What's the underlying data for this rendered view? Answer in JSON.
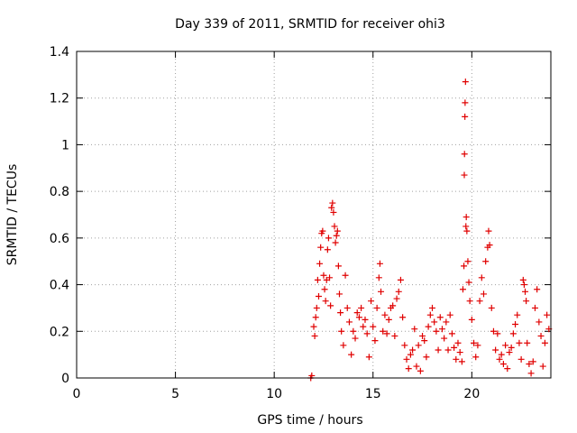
{
  "chart_data": {
    "type": "scatter",
    "title": "Day 339 of 2011, SRMTID for receiver ohi3",
    "xlabel": "GPS time / hours",
    "ylabel": "SRMTID / TECUs",
    "xlim": [
      0,
      24
    ],
    "ylim": [
      0,
      1.4
    ],
    "xticks": [
      0,
      5,
      10,
      15,
      20
    ],
    "xtick_labels": [
      "0",
      "5",
      "10",
      "15",
      "20"
    ],
    "yticks": [
      0,
      0.2,
      0.4,
      0.6,
      0.8,
      1,
      1.2,
      1.4
    ],
    "ytick_labels": [
      "0",
      "0.2",
      "0.4",
      "0.6",
      "0.8",
      "1",
      "1.2",
      "1.4"
    ],
    "grid": true,
    "marker": "+",
    "series": [
      {
        "name": "SRMTID",
        "color": "#e00000",
        "points": [
          [
            11.85,
            0.0
          ],
          [
            11.9,
            0.01
          ],
          [
            12.0,
            0.22
          ],
          [
            12.05,
            0.18
          ],
          [
            12.1,
            0.26
          ],
          [
            12.15,
            0.3
          ],
          [
            12.2,
            0.42
          ],
          [
            12.25,
            0.35
          ],
          [
            12.3,
            0.49
          ],
          [
            12.35,
            0.56
          ],
          [
            12.4,
            0.62
          ],
          [
            12.45,
            0.63
          ],
          [
            12.5,
            0.44
          ],
          [
            12.55,
            0.38
          ],
          [
            12.6,
            0.33
          ],
          [
            12.65,
            0.42
          ],
          [
            12.7,
            0.55
          ],
          [
            12.75,
            0.6
          ],
          [
            12.8,
            0.43
          ],
          [
            12.85,
            0.31
          ],
          [
            12.9,
            0.73
          ],
          [
            12.95,
            0.75
          ],
          [
            13.0,
            0.71
          ],
          [
            13.05,
            0.65
          ],
          [
            13.1,
            0.58
          ],
          [
            13.15,
            0.61
          ],
          [
            13.2,
            0.63
          ],
          [
            13.25,
            0.48
          ],
          [
            13.3,
            0.36
          ],
          [
            13.35,
            0.28
          ],
          [
            13.4,
            0.2
          ],
          [
            13.5,
            0.14
          ],
          [
            13.6,
            0.44
          ],
          [
            13.7,
            0.3
          ],
          [
            13.8,
            0.24
          ],
          [
            13.9,
            0.1
          ],
          [
            14.0,
            0.2
          ],
          [
            14.1,
            0.17
          ],
          [
            14.2,
            0.28
          ],
          [
            14.3,
            0.26
          ],
          [
            14.4,
            0.3
          ],
          [
            14.5,
            0.22
          ],
          [
            14.6,
            0.25
          ],
          [
            14.7,
            0.19
          ],
          [
            14.8,
            0.09
          ],
          [
            14.9,
            0.33
          ],
          [
            15.0,
            0.22
          ],
          [
            15.1,
            0.16
          ],
          [
            15.2,
            0.3
          ],
          [
            15.3,
            0.43
          ],
          [
            15.35,
            0.49
          ],
          [
            15.4,
            0.37
          ],
          [
            15.5,
            0.2
          ],
          [
            15.6,
            0.27
          ],
          [
            15.7,
            0.19
          ],
          [
            15.8,
            0.25
          ],
          [
            15.9,
            0.3
          ],
          [
            16.0,
            0.31
          ],
          [
            16.1,
            0.18
          ],
          [
            16.2,
            0.34
          ],
          [
            16.3,
            0.37
          ],
          [
            16.4,
            0.42
          ],
          [
            16.5,
            0.26
          ],
          [
            16.6,
            0.14
          ],
          [
            16.7,
            0.08
          ],
          [
            16.8,
            0.04
          ],
          [
            16.9,
            0.1
          ],
          [
            17.0,
            0.12
          ],
          [
            17.1,
            0.21
          ],
          [
            17.2,
            0.05
          ],
          [
            17.3,
            0.14
          ],
          [
            17.4,
            0.03
          ],
          [
            17.5,
            0.18
          ],
          [
            17.6,
            0.16
          ],
          [
            17.7,
            0.09
          ],
          [
            17.8,
            0.22
          ],
          [
            17.9,
            0.27
          ],
          [
            18.0,
            0.3
          ],
          [
            18.1,
            0.24
          ],
          [
            18.2,
            0.2
          ],
          [
            18.3,
            0.12
          ],
          [
            18.4,
            0.26
          ],
          [
            18.5,
            0.21
          ],
          [
            18.6,
            0.17
          ],
          [
            18.7,
            0.24
          ],
          [
            18.8,
            0.12
          ],
          [
            18.9,
            0.27
          ],
          [
            19.0,
            0.19
          ],
          [
            19.1,
            0.13
          ],
          [
            19.2,
            0.08
          ],
          [
            19.3,
            0.15
          ],
          [
            19.4,
            0.11
          ],
          [
            19.5,
            0.07
          ],
          [
            19.55,
            0.38
          ],
          [
            19.6,
            0.48
          ],
          [
            19.62,
            0.87
          ],
          [
            19.63,
            0.96
          ],
          [
            19.65,
            1.12
          ],
          [
            19.66,
            1.18
          ],
          [
            19.68,
            1.27
          ],
          [
            19.7,
            0.65
          ],
          [
            19.72,
            0.69
          ],
          [
            19.75,
            0.63
          ],
          [
            19.8,
            0.5
          ],
          [
            19.85,
            0.41
          ],
          [
            19.9,
            0.33
          ],
          [
            20.0,
            0.25
          ],
          [
            20.1,
            0.15
          ],
          [
            20.2,
            0.09
          ],
          [
            20.3,
            0.14
          ],
          [
            20.4,
            0.33
          ],
          [
            20.5,
            0.43
          ],
          [
            20.6,
            0.36
          ],
          [
            20.7,
            0.5
          ],
          [
            20.8,
            0.56
          ],
          [
            20.85,
            0.63
          ],
          [
            20.9,
            0.57
          ],
          [
            21.0,
            0.3
          ],
          [
            21.1,
            0.2
          ],
          [
            21.2,
            0.12
          ],
          [
            21.3,
            0.19
          ],
          [
            21.4,
            0.08
          ],
          [
            21.5,
            0.1
          ],
          [
            21.6,
            0.06
          ],
          [
            21.7,
            0.14
          ],
          [
            21.8,
            0.04
          ],
          [
            21.9,
            0.11
          ],
          [
            22.0,
            0.13
          ],
          [
            22.1,
            0.19
          ],
          [
            22.2,
            0.23
          ],
          [
            22.3,
            0.27
          ],
          [
            22.4,
            0.15
          ],
          [
            22.5,
            0.08
          ],
          [
            22.6,
            0.42
          ],
          [
            22.65,
            0.4
          ],
          [
            22.7,
            0.37
          ],
          [
            22.75,
            0.33
          ],
          [
            22.8,
            0.15
          ],
          [
            22.9,
            0.06
          ],
          [
            23.0,
            0.02
          ],
          [
            23.1,
            0.07
          ],
          [
            23.2,
            0.3
          ],
          [
            23.3,
            0.38
          ],
          [
            23.4,
            0.24
          ],
          [
            23.5,
            0.18
          ],
          [
            23.6,
            0.05
          ],
          [
            23.7,
            0.15
          ],
          [
            23.8,
            0.27
          ],
          [
            23.9,
            0.21
          ]
        ]
      }
    ]
  }
}
